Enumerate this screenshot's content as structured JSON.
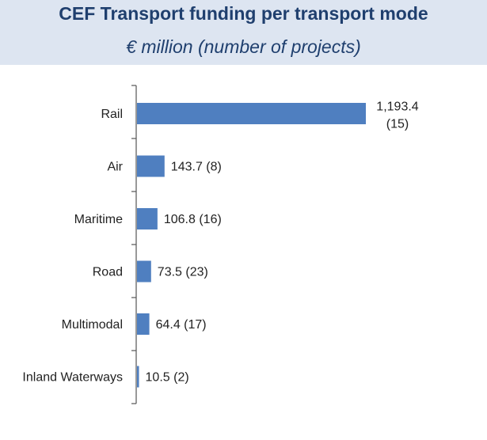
{
  "chart_data": {
    "type": "bar",
    "orientation": "horizontal",
    "title": "CEF Transport funding per transport mode",
    "subtitle": "€ million (number of projects)",
    "categories": [
      "Rail",
      "Air",
      "Maritime",
      "Road",
      "Multimodal",
      "Inland Waterways"
    ],
    "values": [
      1193.4,
      143.7,
      106.8,
      73.5,
      64.4,
      10.5
    ],
    "projects": [
      15,
      8,
      16,
      23,
      17,
      2
    ],
    "data_labels": [
      "1,193.4\n(15)",
      "143.7 (8)",
      "106.8 (16)",
      "73.5 (23)",
      "64.4 (17)",
      "10.5 (2)"
    ],
    "bar_color": "#4f7fc0",
    "xlim": [
      0,
      1193.4
    ],
    "grid": false,
    "legend": "none"
  }
}
